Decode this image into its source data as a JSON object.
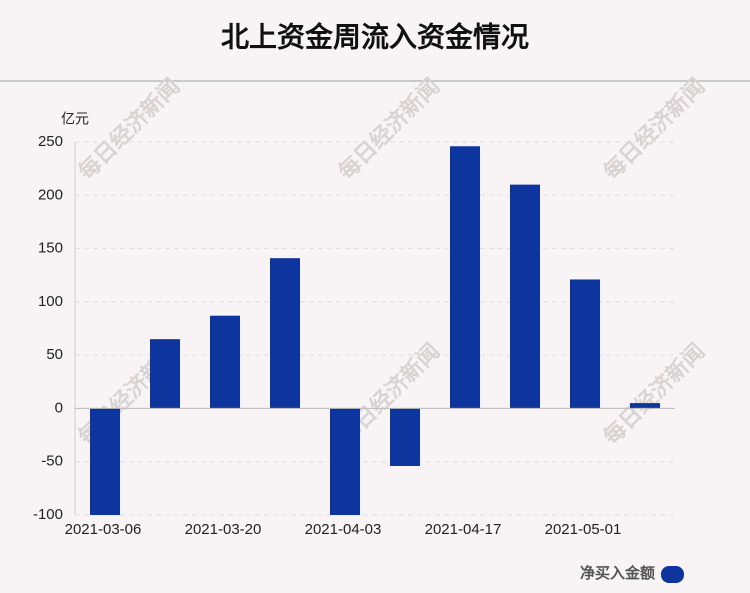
{
  "chart_data": {
    "type": "bar",
    "title": "北上资金周流入资金情况",
    "y_unit": "亿元",
    "watermark": "每日经济新闻",
    "categories": [
      "2021-03-06",
      null,
      "2021-03-20",
      null,
      "2021-04-03",
      null,
      "2021-04-17",
      null,
      "2021-05-01",
      null
    ],
    "series": [
      {
        "name": "净买入金额",
        "color": "#0e349e",
        "values": [
          -100,
          65,
          87,
          141,
          -100,
          -54,
          246,
          210,
          121,
          5
        ]
      }
    ],
    "ylim": [
      -100,
      250
    ],
    "yticks": [
      -100,
      -50,
      0,
      50,
      100,
      150,
      200,
      250
    ],
    "grid": true,
    "legend": "bottom-right"
  }
}
